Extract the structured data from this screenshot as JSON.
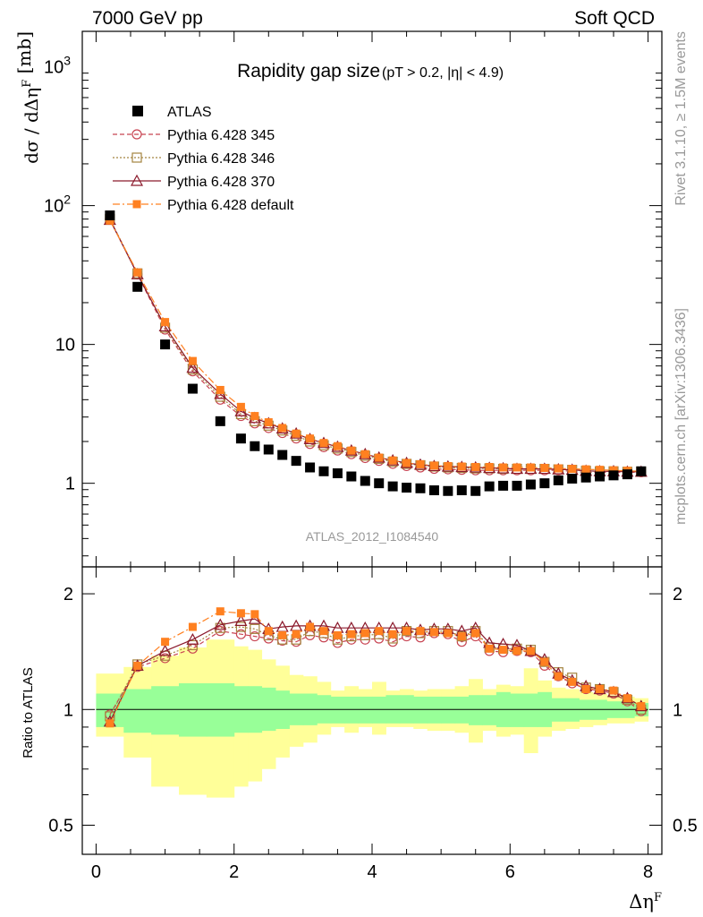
{
  "header": {
    "left": "7000 GeV pp",
    "right": "Soft QCD"
  },
  "side_labels": {
    "top": "Rivet 3.1.10, ≥ 1.5M events",
    "bottom": "mcplots.cern.ch [arXiv:1306.3436]"
  },
  "colors": {
    "atlas": "#000000",
    "p345": "#c84452",
    "p346": "#a48440",
    "p370": "#8b1a2c",
    "pdef": "#ff8020",
    "band_inner": "#98ff98",
    "band_outer": "#ffff99"
  },
  "chart_data": [
    {
      "type": "scatter",
      "title": "Rapidity gap size",
      "subtitle": "(pT > 0.2, |η| < 4.9)",
      "xlabel": "ΔηF",
      "ylabel": "dσ / dΔηF [mb]",
      "annotation": "ATLAS_2012_I1084540",
      "yscale": "log",
      "xlim": [
        -0.2,
        8.2
      ],
      "ylim": [
        0.25,
        1800
      ],
      "x_ticks": [
        "0",
        "2",
        "4",
        "6",
        "8"
      ],
      "y_ticks": [
        "1",
        "10",
        "10²",
        "10³"
      ],
      "legend_position": "top-left",
      "legend": [
        "ATLAS",
        "Pythia 6.428 345",
        "Pythia 6.428 346",
        "Pythia 6.428 370",
        "Pythia 6.428 default"
      ],
      "x": [
        0.2,
        0.6,
        1.0,
        1.4,
        1.8,
        2.1,
        2.3,
        2.5,
        2.7,
        2.9,
        3.1,
        3.3,
        3.5,
        3.7,
        3.9,
        4.1,
        4.3,
        4.5,
        4.7,
        4.9,
        5.1,
        5.3,
        5.5,
        5.7,
        5.9,
        6.1,
        6.3,
        6.5,
        6.7,
        6.9,
        7.1,
        7.3,
        7.5,
        7.7,
        7.9
      ],
      "series": [
        {
          "name": "ATLAS",
          "values": [
            85,
            26,
            10,
            4.8,
            2.8,
            2.1,
            1.85,
            1.75,
            1.6,
            1.45,
            1.3,
            1.22,
            1.18,
            1.12,
            1.04,
            1.0,
            0.95,
            0.93,
            0.92,
            0.89,
            0.88,
            0.89,
            0.88,
            0.95,
            0.96,
            0.96,
            0.98,
            1.0,
            1.05,
            1.08,
            1.1,
            1.12,
            1.14,
            1.16,
            1.22
          ]
        },
        {
          "name": "Pythia 6.428 345",
          "values": [
            80,
            32,
            12.8,
            6.4,
            4.0,
            3.05,
            2.7,
            2.5,
            2.3,
            2.1,
            1.92,
            1.82,
            1.72,
            1.62,
            1.52,
            1.45,
            1.38,
            1.33,
            1.3,
            1.27,
            1.26,
            1.25,
            1.24,
            1.24,
            1.24,
            1.24,
            1.24,
            1.24,
            1.24,
            1.22,
            1.2,
            1.2,
            1.2,
            1.2,
            1.2
          ]
        },
        {
          "name": "Pythia 6.428 346",
          "values": [
            80,
            32.5,
            13.2,
            6.6,
            4.2,
            3.15,
            2.8,
            2.6,
            2.4,
            2.2,
            2.0,
            1.88,
            1.78,
            1.68,
            1.58,
            1.5,
            1.43,
            1.38,
            1.35,
            1.32,
            1.3,
            1.29,
            1.28,
            1.28,
            1.27,
            1.27,
            1.27,
            1.27,
            1.26,
            1.25,
            1.23,
            1.22,
            1.22,
            1.21,
            1.21
          ]
        },
        {
          "name": "Pythia 6.428 370",
          "values": [
            79,
            32,
            13.5,
            6.8,
            4.4,
            3.3,
            2.95,
            2.7,
            2.48,
            2.28,
            2.08,
            1.95,
            1.83,
            1.72,
            1.62,
            1.53,
            1.46,
            1.4,
            1.36,
            1.33,
            1.32,
            1.31,
            1.3,
            1.29,
            1.28,
            1.27,
            1.27,
            1.27,
            1.26,
            1.25,
            1.23,
            1.22,
            1.22,
            1.21,
            1.21
          ]
        },
        {
          "name": "Pythia 6.428 default",
          "values": [
            78,
            33,
            14.5,
            7.6,
            4.7,
            3.55,
            3.05,
            2.75,
            2.5,
            2.28,
            2.1,
            1.95,
            1.85,
            1.72,
            1.62,
            1.53,
            1.46,
            1.4,
            1.37,
            1.34,
            1.33,
            1.32,
            1.31,
            1.31,
            1.3,
            1.3,
            1.3,
            1.29,
            1.28,
            1.27,
            1.26,
            1.25,
            1.24,
            1.23,
            1.22
          ]
        }
      ]
    },
    {
      "type": "line",
      "ylabel": "Ratio to ATLAS",
      "xlabel": "ΔηF",
      "yscale": "log",
      "xlim": [
        -0.2,
        8.2
      ],
      "ylim": [
        0.42,
        2.35
      ],
      "y_ticks": [
        "0.5",
        "1",
        "2"
      ],
      "x_ticks": [
        "0",
        "2",
        "4",
        "6",
        "8"
      ],
      "x": [
        0.2,
        0.6,
        1.0,
        1.4,
        1.8,
        2.1,
        2.3,
        2.5,
        2.7,
        2.9,
        3.1,
        3.3,
        3.5,
        3.7,
        3.9,
        4.1,
        4.3,
        4.5,
        4.7,
        4.9,
        5.1,
        5.3,
        5.5,
        5.7,
        5.9,
        6.1,
        6.3,
        6.5,
        6.7,
        6.9,
        7.1,
        7.3,
        7.5,
        7.7,
        7.9
      ],
      "band_edges": [
        0.0,
        0.4,
        0.8,
        1.2,
        1.6,
        2.0,
        2.2,
        2.4,
        2.6,
        2.8,
        3.0,
        3.2,
        3.4,
        3.6,
        3.8,
        4.0,
        4.2,
        4.4,
        4.6,
        4.8,
        5.0,
        5.2,
        5.4,
        5.6,
        5.8,
        6.0,
        6.2,
        6.4,
        6.6,
        6.8,
        7.0,
        7.2,
        7.4,
        7.6,
        7.8,
        8.0
      ],
      "band_inner": [
        [
          0.9,
          1.1
        ],
        [
          0.87,
          1.13
        ],
        [
          0.86,
          1.15
        ],
        [
          0.85,
          1.17
        ],
        [
          0.85,
          1.17
        ],
        [
          0.87,
          1.15
        ],
        [
          0.87,
          1.15
        ],
        [
          0.88,
          1.14
        ],
        [
          0.89,
          1.12
        ],
        [
          0.91,
          1.1
        ],
        [
          0.91,
          1.1
        ],
        [
          0.92,
          1.09
        ],
        [
          0.92,
          1.08
        ],
        [
          0.92,
          1.08
        ],
        [
          0.92,
          1.08
        ],
        [
          0.92,
          1.08
        ],
        [
          0.92,
          1.09
        ],
        [
          0.92,
          1.09
        ],
        [
          0.92,
          1.08
        ],
        [
          0.92,
          1.08
        ],
        [
          0.92,
          1.08
        ],
        [
          0.92,
          1.08
        ],
        [
          0.91,
          1.09
        ],
        [
          0.91,
          1.09
        ],
        [
          0.9,
          1.11
        ],
        [
          0.9,
          1.1
        ],
        [
          0.9,
          1.1
        ],
        [
          0.9,
          1.11
        ],
        [
          0.93,
          1.07
        ],
        [
          0.93,
          1.07
        ],
        [
          0.94,
          1.06
        ],
        [
          0.94,
          1.06
        ],
        [
          0.95,
          1.05
        ],
        [
          0.95,
          1.05
        ],
        [
          0.96,
          1.04
        ]
      ],
      "band_outer": [
        [
          0.85,
          1.24
        ],
        [
          0.75,
          1.29
        ],
        [
          0.63,
          1.38
        ],
        [
          0.6,
          1.45
        ],
        [
          0.59,
          1.52
        ],
        [
          0.63,
          1.46
        ],
        [
          0.65,
          1.43
        ],
        [
          0.7,
          1.35
        ],
        [
          0.75,
          1.3
        ],
        [
          0.8,
          1.23
        ],
        [
          0.82,
          1.22
        ],
        [
          0.86,
          1.18
        ],
        [
          0.9,
          1.12
        ],
        [
          0.87,
          1.15
        ],
        [
          0.9,
          1.13
        ],
        [
          0.86,
          1.18
        ],
        [
          0.9,
          1.12
        ],
        [
          0.9,
          1.13
        ],
        [
          0.89,
          1.12
        ],
        [
          0.88,
          1.13
        ],
        [
          0.88,
          1.13
        ],
        [
          0.87,
          1.15
        ],
        [
          0.82,
          1.2
        ],
        [
          0.88,
          1.13
        ],
        [
          0.85,
          1.16
        ],
        [
          0.86,
          1.15
        ],
        [
          0.77,
          1.28
        ],
        [
          0.85,
          1.19
        ],
        [
          0.88,
          1.14
        ],
        [
          0.89,
          1.13
        ],
        [
          0.9,
          1.11
        ],
        [
          0.91,
          1.1
        ],
        [
          0.92,
          1.09
        ],
        [
          0.92,
          1.08
        ],
        [
          0.93,
          1.07
        ]
      ],
      "series": [
        {
          "name": "Pythia 6.428 345",
          "values": [
            0.97,
            1.29,
            1.36,
            1.44,
            1.6,
            1.57,
            1.55,
            1.53,
            1.51,
            1.5,
            1.56,
            1.54,
            1.49,
            1.52,
            1.52,
            1.53,
            1.5,
            1.55,
            1.54,
            1.58,
            1.57,
            1.5,
            1.55,
            1.42,
            1.41,
            1.42,
            1.41,
            1.3,
            1.22,
            1.17,
            1.13,
            1.12,
            1.1,
            1.05,
            0.99
          ]
        },
        {
          "name": "Pythia 6.428 346",
          "values": [
            0.96,
            1.31,
            1.38,
            1.47,
            1.63,
            1.64,
            1.62,
            1.56,
            1.52,
            1.52,
            1.6,
            1.58,
            1.52,
            1.55,
            1.56,
            1.57,
            1.53,
            1.6,
            1.58,
            1.6,
            1.6,
            1.55,
            1.6,
            1.45,
            1.44,
            1.44,
            1.43,
            1.33,
            1.25,
            1.21,
            1.14,
            1.13,
            1.11,
            1.06,
            1.0
          ]
        },
        {
          "name": "Pythia 6.428 370",
          "values": [
            0.93,
            1.3,
            1.42,
            1.52,
            1.66,
            1.7,
            1.72,
            1.62,
            1.64,
            1.65,
            1.65,
            1.65,
            1.63,
            1.63,
            1.63,
            1.63,
            1.63,
            1.63,
            1.61,
            1.62,
            1.62,
            1.6,
            1.63,
            1.49,
            1.48,
            1.47,
            1.42,
            1.35,
            1.24,
            1.19,
            1.15,
            1.13,
            1.11,
            1.07,
            1.02
          ]
        },
        {
          "name": "Pythia 6.428 default",
          "values": [
            0.92,
            1.3,
            1.5,
            1.64,
            1.8,
            1.78,
            1.77,
            1.6,
            1.56,
            1.57,
            1.64,
            1.6,
            1.56,
            1.57,
            1.58,
            1.6,
            1.57,
            1.6,
            1.6,
            1.59,
            1.58,
            1.55,
            1.58,
            1.44,
            1.43,
            1.42,
            1.42,
            1.33,
            1.22,
            1.18,
            1.13,
            1.13,
            1.12,
            1.07,
            1.02
          ]
        }
      ]
    }
  ]
}
